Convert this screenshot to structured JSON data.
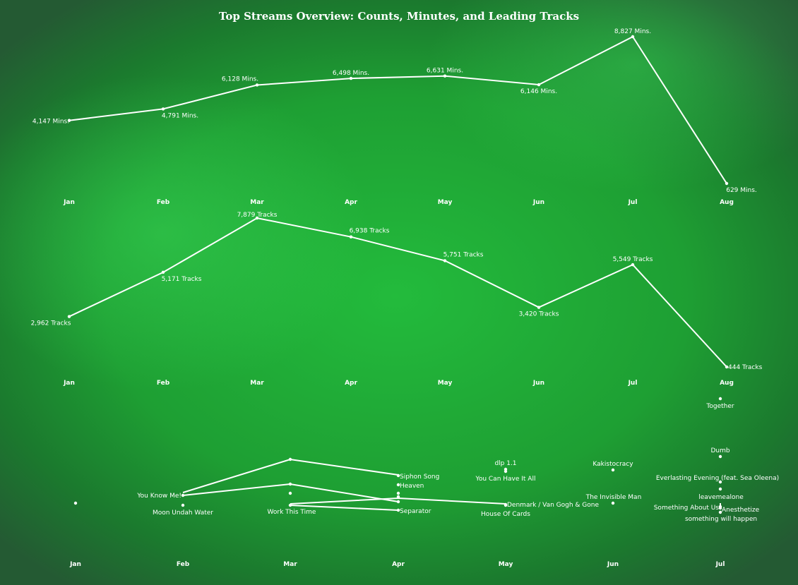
{
  "page": {
    "title": "Top Streams Overview: Counts, Minutes, and Leading Tracks"
  },
  "chart_data": [
    {
      "type": "line",
      "categories": [
        "Jan",
        "Feb",
        "Mar",
        "Apr",
        "May",
        "Jun",
        "Jul",
        "Aug"
      ],
      "series": [
        {
          "values": [
            4147,
            4791,
            6128,
            6498,
            6631,
            6146,
            8827,
            629
          ],
          "labels": [
            "4,147 Mins.",
            "4,791 Mins.",
            "6,128 Mins.",
            "6,498 Mins.",
            "6,631 Mins.",
            "6,146 Mins.",
            "8,827 Mins.",
            "629 Mins."
          ]
        }
      ],
      "ylim": [
        0,
        9500
      ],
      "grid": false
    },
    {
      "type": "line",
      "categories": [
        "Jan",
        "Feb",
        "Mar",
        "Apr",
        "May",
        "Jun",
        "Jul",
        "Aug"
      ],
      "series": [
        {
          "values": [
            2962,
            5171,
            7879,
            6938,
            5751,
            3420,
            5549,
            444
          ],
          "labels": [
            "2,962 Tracks",
            "5,171 Tracks",
            "7,879 Tracks",
            "6,938 Tracks",
            "5,751 Tracks",
            "3,420 Tracks",
            "5,549 Tracks",
            "444 Tracks"
          ]
        }
      ],
      "ylim": [
        0,
        8500
      ],
      "grid": false
    },
    {
      "type": "scatter",
      "categories": [
        "Jan",
        "Feb",
        "Mar",
        "Apr",
        "May",
        "Jun",
        "Jul"
      ],
      "tracks": [
        {
          "month": "Jan",
          "name": ""
        },
        {
          "month": "Feb",
          "name": "You Know Me!"
        },
        {
          "month": "Feb",
          "name": "Moon Undah Water"
        },
        {
          "month": "Mar",
          "name": "Work This Time"
        },
        {
          "month": "Apr",
          "name": "Siphon Song"
        },
        {
          "month": "Apr",
          "name": "Heaven"
        },
        {
          "month": "Apr",
          "name": "Separator"
        },
        {
          "month": "May",
          "name": "dlp 1.1"
        },
        {
          "month": "May",
          "name": "You Can Have It All"
        },
        {
          "month": "May",
          "name": "Denmark / Van Gogh & Gone"
        },
        {
          "month": "May",
          "name": "House Of Cards"
        },
        {
          "month": "Jun",
          "name": "Kakistocracy"
        },
        {
          "month": "Jun",
          "name": "The Invisible Man"
        },
        {
          "month": "Jul",
          "name": "Together"
        },
        {
          "month": "Jul",
          "name": "Dumb"
        },
        {
          "month": "Jul",
          "name": "Everlasting Evening (feat. Sea Oleena)"
        },
        {
          "month": "Jul",
          "name": "leavemealone"
        },
        {
          "month": "Jul",
          "name": "Something About Us"
        },
        {
          "month": "Jul",
          "name": "Anesthetize"
        },
        {
          "month": "Jul",
          "name": "something will happen"
        }
      ],
      "grid": false
    }
  ]
}
